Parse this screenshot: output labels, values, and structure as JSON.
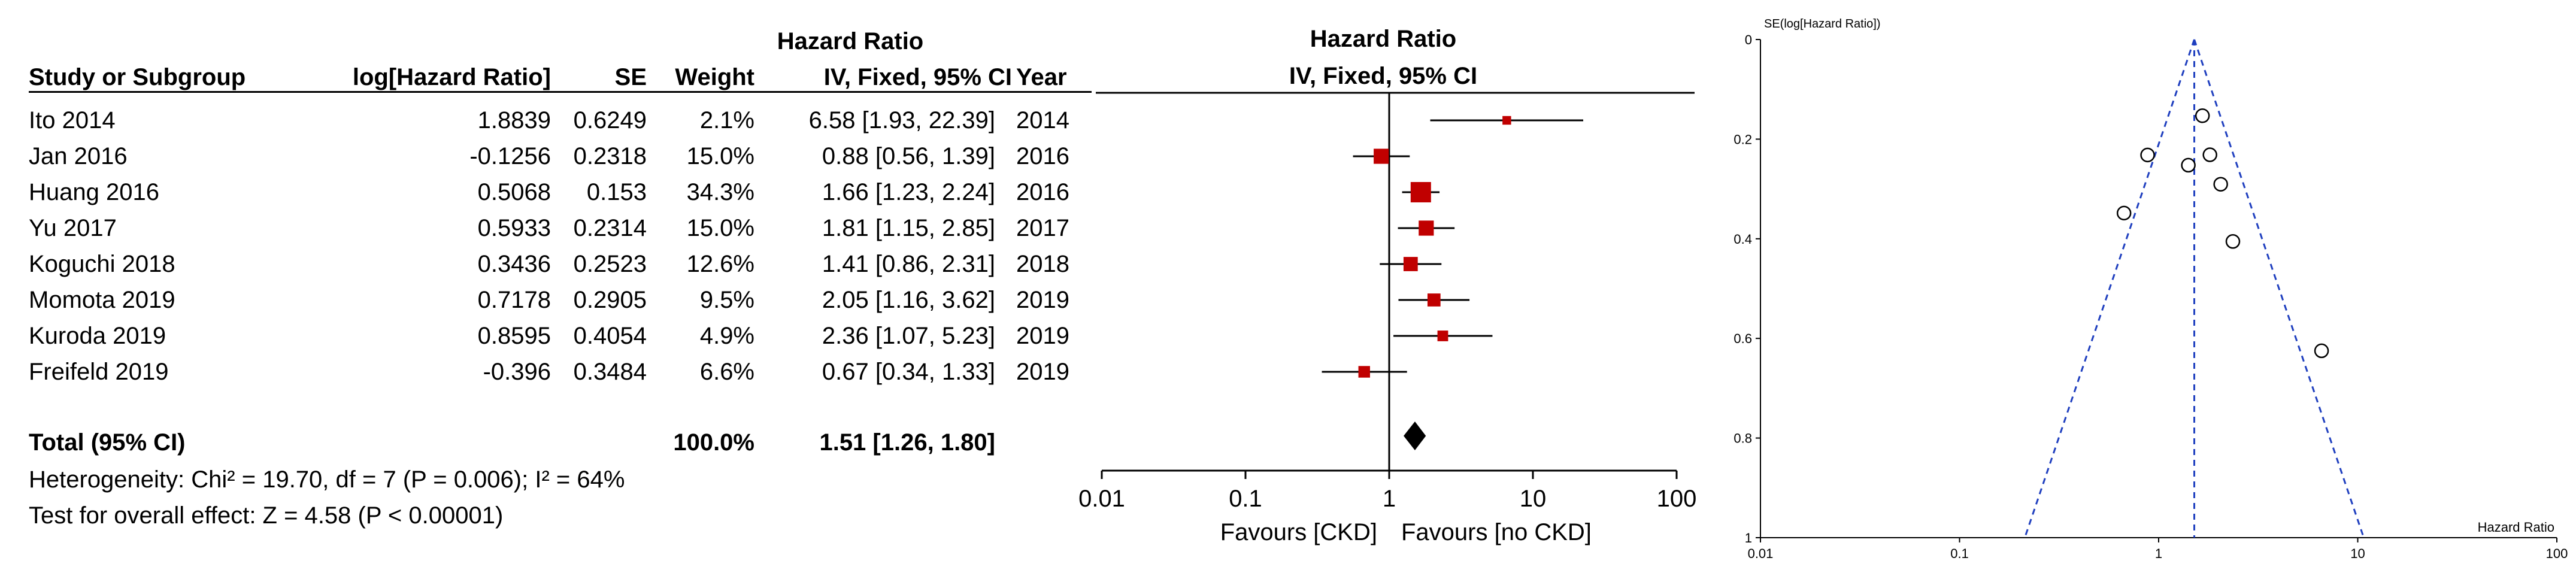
{
  "table": {
    "header": {
      "hr_group_left": "Hazard Ratio",
      "hr_group_right": "Hazard Ratio",
      "study": "Study or Subgroup",
      "loghr": "log[Hazard Ratio]",
      "se": "SE",
      "weight": "Weight",
      "ci": "IV, Fixed, 95% CI",
      "year": "Year",
      "plot_ci": "IV, Fixed, 95% CI"
    },
    "rows": [
      {
        "study": "Ito 2014",
        "loghr": "1.8839",
        "se": "0.6249",
        "weight": "2.1%",
        "ci": "6.58 [1.93, 22.39]",
        "year": "2014"
      },
      {
        "study": "Jan 2016",
        "loghr": "-0.1256",
        "se": "0.2318",
        "weight": "15.0%",
        "ci": "0.88 [0.56, 1.39]",
        "year": "2016"
      },
      {
        "study": "Huang 2016",
        "loghr": "0.5068",
        "se": "0.153",
        "weight": "34.3%",
        "ci": "1.66 [1.23, 2.24]",
        "year": "2016"
      },
      {
        "study": "Yu 2017",
        "loghr": "0.5933",
        "se": "0.2314",
        "weight": "15.0%",
        "ci": "1.81 [1.15, 2.85]",
        "year": "2017"
      },
      {
        "study": "Koguchi 2018",
        "loghr": "0.3436",
        "se": "0.2523",
        "weight": "12.6%",
        "ci": "1.41 [0.86, 2.31]",
        "year": "2018"
      },
      {
        "study": "Momota 2019",
        "loghr": "0.7178",
        "se": "0.2905",
        "weight": "9.5%",
        "ci": "2.05 [1.16, 3.62]",
        "year": "2019"
      },
      {
        "study": "Kuroda 2019",
        "loghr": "0.8595",
        "se": "0.4054",
        "weight": "4.9%",
        "ci": "2.36 [1.07, 5.23]",
        "year": "2019"
      },
      {
        "study": "Freifeld 2019",
        "loghr": "-0.396",
        "se": "0.3484",
        "weight": "6.6%",
        "ci": "0.67 [0.34, 1.33]",
        "year": "2019"
      }
    ],
    "total": {
      "label": "Total (95% CI)",
      "weight": "100.0%",
      "ci": "1.51 [1.26, 1.80]"
    },
    "heterogeneity": "Heterogeneity: Chi² = 19.70, df = 7 (P = 0.006); I² = 64%",
    "overall_effect": "Test for overall effect: Z = 4.58 (P < 0.00001)"
  },
  "chart_data": [
    {
      "type": "forest",
      "title": "Hazard Ratio",
      "subtitle": "IV, Fixed, 95% CI",
      "x_scale": "log",
      "xlim": [
        0.01,
        100
      ],
      "xticks": [
        0.01,
        0.1,
        1,
        10,
        100
      ],
      "xtick_labels": [
        "0.01",
        "0.1",
        "1",
        "10",
        "100"
      ],
      "favours_left": "Favours [CKD]",
      "favours_right": "Favours [no CKD]",
      "studies": [
        {
          "name": "Ito 2014",
          "hr": 6.58,
          "lower": 1.93,
          "upper": 22.39,
          "weight": 2.1
        },
        {
          "name": "Jan 2016",
          "hr": 0.88,
          "lower": 0.56,
          "upper": 1.39,
          "weight": 15.0
        },
        {
          "name": "Huang 2016",
          "hr": 1.66,
          "lower": 1.23,
          "upper": 2.24,
          "weight": 34.3
        },
        {
          "name": "Yu 2017",
          "hr": 1.81,
          "lower": 1.15,
          "upper": 2.85,
          "weight": 15.0
        },
        {
          "name": "Koguchi 2018",
          "hr": 1.41,
          "lower": 0.86,
          "upper": 2.31,
          "weight": 12.6
        },
        {
          "name": "Momota 2019",
          "hr": 2.05,
          "lower": 1.16,
          "upper": 3.62,
          "weight": 9.5
        },
        {
          "name": "Kuroda 2019",
          "hr": 2.36,
          "lower": 1.07,
          "upper": 5.23,
          "weight": 4.9
        },
        {
          "name": "Freifeld 2019",
          "hr": 0.67,
          "lower": 0.34,
          "upper": 1.33,
          "weight": 6.6
        }
      ],
      "pooled": {
        "hr": 1.51,
        "lower": 1.26,
        "upper": 1.8
      },
      "colors": {
        "marker": "#c00000",
        "line": "#000000"
      }
    },
    {
      "type": "scatter",
      "subtype": "funnel",
      "ylabel": "SE(log[Hazard Ratio])",
      "xlabel": "Hazard Ratio",
      "x_scale": "log",
      "xlim": [
        0.01,
        100
      ],
      "xticks": [
        0.01,
        0.1,
        1,
        10,
        100
      ],
      "xtick_labels": [
        "0.01",
        "0.1",
        "1",
        "10",
        "100"
      ],
      "ylim": [
        0,
        1
      ],
      "y_inverted": true,
      "yticks": [
        0,
        0.2,
        0.4,
        0.6,
        0.8,
        1
      ],
      "ytick_labels": [
        "0",
        "0.2",
        "0.4",
        "0.6",
        "0.8",
        "1"
      ],
      "pooled_hr": 1.51,
      "points": [
        {
          "hr": 6.58,
          "se": 0.6249
        },
        {
          "hr": 0.88,
          "se": 0.2318
        },
        {
          "hr": 1.66,
          "se": 0.153
        },
        {
          "hr": 1.81,
          "se": 0.2314
        },
        {
          "hr": 1.41,
          "se": 0.2523
        },
        {
          "hr": 2.05,
          "se": 0.2905
        },
        {
          "hr": 2.36,
          "se": 0.4054
        },
        {
          "hr": 0.67,
          "se": 0.3484
        }
      ],
      "colors": {
        "funnel": "#1f3fbf",
        "point": "#000000"
      }
    }
  ]
}
